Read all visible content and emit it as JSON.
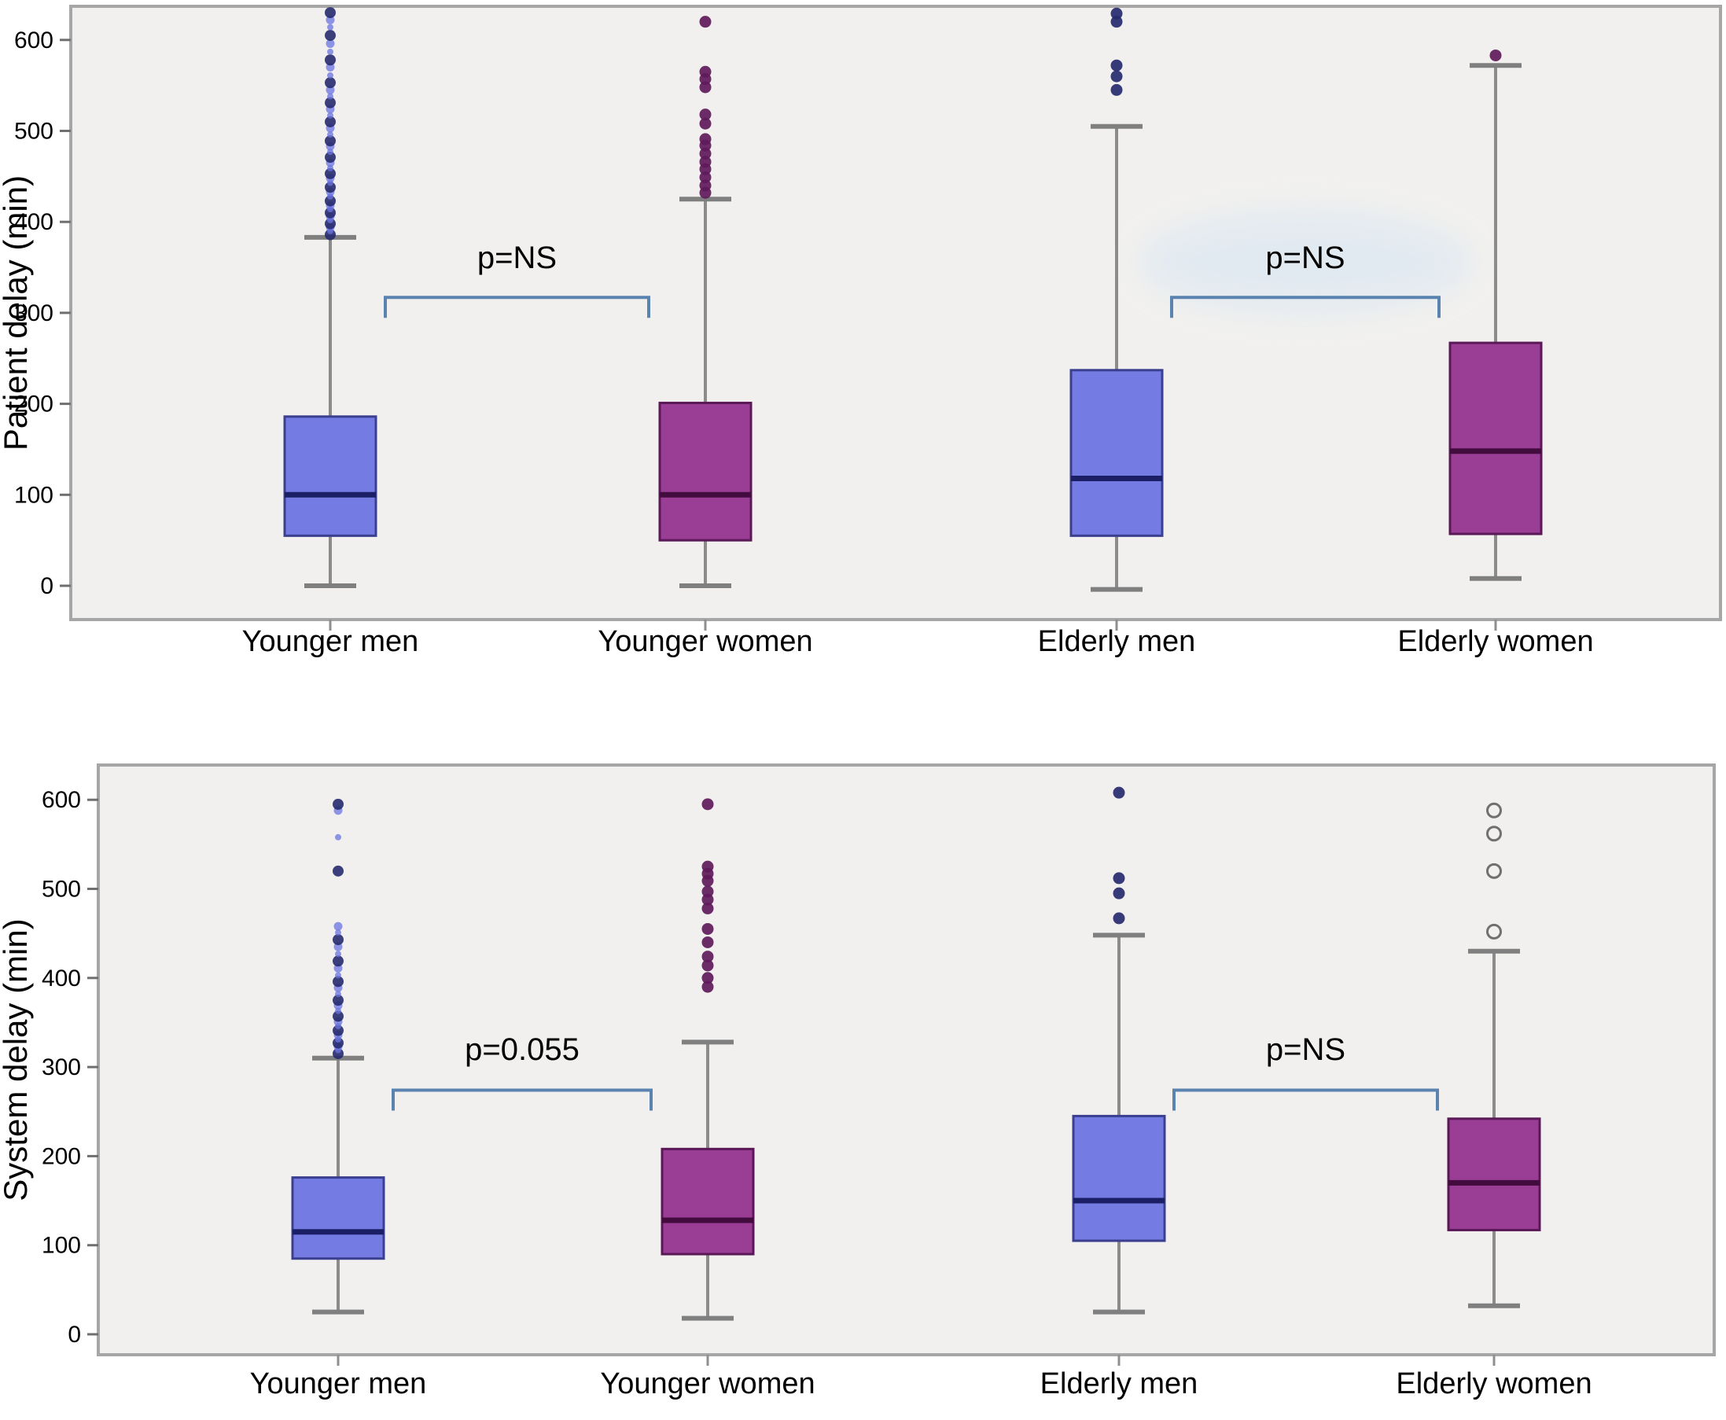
{
  "figure": {
    "panel_bg": "#f1f0ee",
    "frame_color": "#a6a6a6",
    "whisker_color": "#8b8b8b",
    "cap_color": "#7f7f7f",
    "bracket_color": "#5b83b0",
    "text_color": "#000000",
    "blue_fill": "#747be2",
    "blue_edge": "#3a3f8f",
    "blue_median": "#1b2066",
    "blue_outlier_dark": "#262a6e",
    "blue_outlier_light": "#6b74e0",
    "purple_fill": "#993e94",
    "purple_edge": "#5a1857",
    "purple_median": "#420c3e",
    "purple_outlier": "#5e1a5a",
    "open_outlier_stroke": "#707070",
    "halo_color": "#dbe7f3"
  },
  "chart_data": [
    {
      "type": "boxplot",
      "panel": "top",
      "ylabel": "Patient delay (min)",
      "yticks": [
        0,
        100,
        200,
        300,
        400,
        500,
        600
      ],
      "ylim": [
        -37,
        637
      ],
      "grid": false,
      "legend": "none",
      "categories": [
        "Younger men",
        "Younger women",
        "Elderly men",
        "Elderly women"
      ],
      "series": [
        {
          "name": "Younger men",
          "color": "blue",
          "outlier_style": "filled-mixed",
          "whisker_low": 0,
          "q1": 55,
          "median": 100,
          "q3": 186,
          "whisker_high": 383,
          "outliers": [
            386,
            390,
            394,
            398,
            402,
            406,
            410,
            414,
            418,
            423,
            428,
            433,
            438,
            443,
            448,
            453,
            459,
            465,
            471,
            477,
            483,
            489,
            496,
            503,
            510,
            517,
            524,
            531,
            538,
            545,
            553,
            561,
            570,
            578,
            587,
            596,
            605,
            614,
            622,
            630
          ]
        },
        {
          "name": "Younger women",
          "color": "purple",
          "outlier_style": "filled",
          "whisker_low": 0,
          "q1": 50,
          "median": 100,
          "q3": 201,
          "whisker_high": 425,
          "outliers": [
            432,
            440,
            449,
            458,
            466,
            475,
            484,
            491,
            508,
            518,
            548,
            557,
            565,
            620
          ]
        },
        {
          "name": "Elderly men",
          "color": "blue",
          "outlier_style": "filled",
          "whisker_low": -4,
          "q1": 55,
          "median": 118,
          "q3": 237,
          "whisker_high": 505,
          "outliers": [
            545,
            560,
            572,
            620,
            629
          ]
        },
        {
          "name": "Elderly women",
          "color": "purple",
          "outlier_style": "filled",
          "whisker_low": 8,
          "q1": 57,
          "median": 148,
          "q3": 267,
          "whisker_high": 572,
          "outliers": [
            583
          ]
        }
      ],
      "annotations": [
        {
          "label": "p=NS",
          "between": [
            0,
            1
          ],
          "bracket_value": 317,
          "label_value": 349,
          "halo": false
        },
        {
          "label": "p=NS",
          "between": [
            2,
            3
          ],
          "bracket_value": 317,
          "label_value": 349,
          "halo": true
        }
      ]
    },
    {
      "type": "boxplot",
      "panel": "bottom",
      "ylabel": "System delay (min)",
      "yticks": [
        0,
        100,
        200,
        300,
        400,
        500,
        600
      ],
      "ylim": [
        -23,
        639
      ],
      "grid": false,
      "legend": "none",
      "categories": [
        "Younger men",
        "Younger women",
        "Elderly men",
        "Elderly women"
      ],
      "series": [
        {
          "name": "Younger men",
          "color": "blue",
          "outlier_style": "filled-mixed",
          "whisker_low": 25,
          "q1": 85,
          "median": 115,
          "q3": 176,
          "whisker_high": 310,
          "outliers": [
            315,
            319,
            323,
            327,
            331,
            336,
            341,
            346,
            351,
            357,
            363,
            369,
            375,
            382,
            389,
            396,
            403,
            411,
            419,
            427,
            435,
            443,
            451,
            458,
            520,
            558,
            588,
            595
          ]
        },
        {
          "name": "Younger women",
          "color": "purple",
          "outlier_style": "filled",
          "whisker_low": 18,
          "q1": 90,
          "median": 128,
          "q3": 208,
          "whisker_high": 328,
          "outliers": [
            390,
            400,
            414,
            424,
            440,
            455,
            478,
            488,
            497,
            509,
            517,
            525,
            595
          ]
        },
        {
          "name": "Elderly men",
          "color": "blue",
          "outlier_style": "filled",
          "whisker_low": 25,
          "q1": 105,
          "median": 150,
          "q3": 245,
          "whisker_high": 448,
          "outliers": [
            467,
            495,
            512,
            608
          ]
        },
        {
          "name": "Elderly women",
          "color": "purple",
          "outlier_style": "open",
          "whisker_low": 32,
          "q1": 117,
          "median": 170,
          "q3": 242,
          "whisker_high": 430,
          "outliers": [
            452,
            520,
            562,
            588
          ]
        }
      ],
      "annotations": [
        {
          "label": "p=0.055",
          "between": [
            0,
            1
          ],
          "bracket_value": 274,
          "label_value": 308,
          "halo": false
        },
        {
          "label": "p=NS",
          "between": [
            2,
            3
          ],
          "bracket_value": 274,
          "label_value": 308,
          "halo": false
        }
      ]
    }
  ]
}
